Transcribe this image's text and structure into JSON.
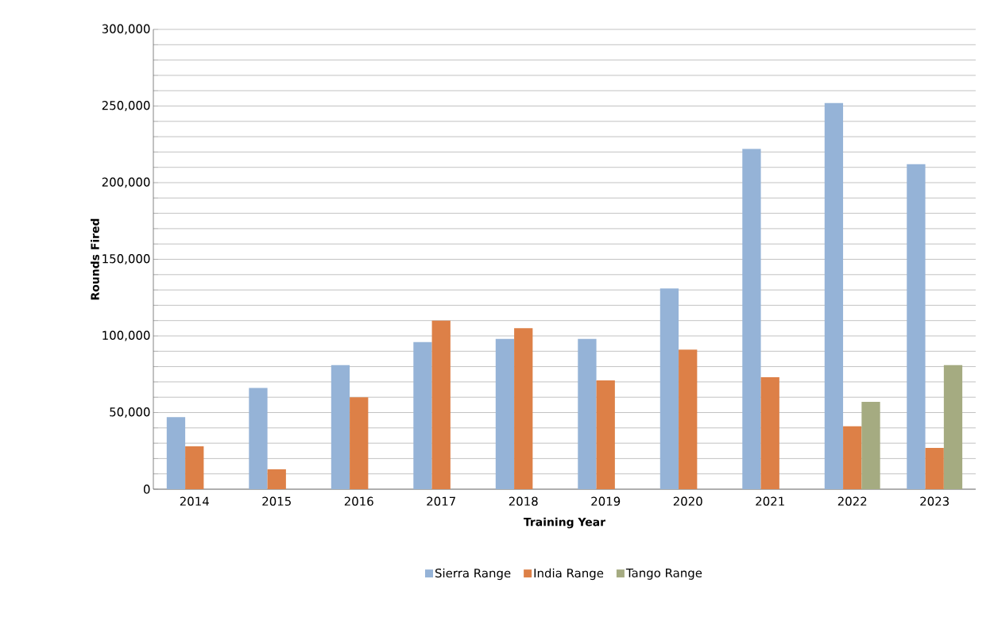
{
  "chart_data": {
    "type": "bar",
    "xlabel": "Training Year",
    "ylabel": "Rounds Fired",
    "categories": [
      "2014",
      "2015",
      "2016",
      "2017",
      "2018",
      "2019",
      "2020",
      "2021",
      "2022",
      "2023"
    ],
    "series": [
      {
        "name": "Sierra Range",
        "color": "#95b3d7",
        "values": [
          47000,
          66000,
          81000,
          96000,
          98000,
          98000,
          131000,
          222000,
          252000,
          212000
        ]
      },
      {
        "name": "India Range",
        "color": "#dd8047",
        "values": [
          28000,
          13000,
          60000,
          110000,
          105000,
          71000,
          91000,
          73000,
          41000,
          27000
        ]
      },
      {
        "name": "Tango Range",
        "color": "#a5ab81",
        "values": [
          null,
          null,
          null,
          null,
          null,
          null,
          null,
          null,
          57000,
          81000
        ]
      }
    ],
    "ylim": [
      0,
      300000
    ],
    "yticks": [
      0,
      {
        "value": 10000,
        "label": null
      },
      {
        "value": 20000,
        "label": null
      },
      {
        "value": 30000,
        "label": null
      },
      {
        "value": 40000,
        "label": null
      },
      {
        "value": 50000,
        "label": "50,000"
      },
      {
        "value": 60000,
        "label": null
      },
      {
        "value": 70000,
        "label": null
      },
      {
        "value": 80000,
        "label": null
      },
      {
        "value": 90000,
        "label": null
      },
      {
        "value": 100000,
        "label": "100,000"
      },
      {
        "value": 110000,
        "label": null
      },
      {
        "value": 120000,
        "label": null
      },
      {
        "value": 130000,
        "label": null
      },
      {
        "value": 140000,
        "label": null
      },
      {
        "value": 150000,
        "label": "150,000"
      },
      {
        "value": 160000,
        "label": null
      },
      {
        "value": 170000,
        "label": null
      },
      {
        "value": 180000,
        "label": null
      },
      {
        "value": 190000,
        "label": null
      },
      {
        "value": 200000,
        "label": "200,000"
      },
      {
        "value": 210000,
        "label": null
      },
      {
        "value": 220000,
        "label": null
      },
      {
        "value": 230000,
        "label": null
      },
      {
        "value": 240000,
        "label": null
      },
      {
        "value": 250000,
        "label": "250,000"
      },
      {
        "value": 260000,
        "label": null
      },
      {
        "value": 270000,
        "label": null
      },
      {
        "value": 280000,
        "label": null
      },
      {
        "value": 290000,
        "label": null
      },
      {
        "value": 300000,
        "label": "300,000"
      }
    ],
    "grid": "y",
    "legend": "bottom"
  }
}
